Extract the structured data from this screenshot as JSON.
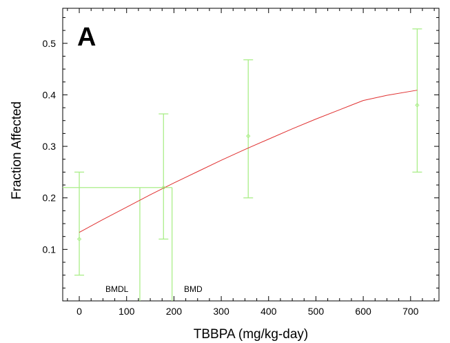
{
  "chart_data": {
    "type": "scatter",
    "panel_label": "A",
    "xlabel": "TBBPA (mg/kg-day)",
    "ylabel": "Fraction Affected",
    "xlim": [
      -35,
      760
    ],
    "ylim": [
      0.0,
      0.568
    ],
    "x_ticks": [
      0,
      100,
      200,
      300,
      400,
      500,
      600,
      700
    ],
    "y_ticks": [
      0.1,
      0.2,
      0.3,
      0.4,
      0.5
    ],
    "y_tick_labels": [
      "0.1",
      "0.2",
      "0.3",
      "0.4",
      "0.5"
    ],
    "grid": false,
    "data_points": [
      {
        "x": 0,
        "y": 0.12,
        "lower": 0.05,
        "upper": 0.25
      },
      {
        "x": 178,
        "y": 0.22,
        "lower": 0.12,
        "upper": 0.363
      },
      {
        "x": 357,
        "y": 0.32,
        "lower": 0.2,
        "upper": 0.468
      },
      {
        "x": 714,
        "y": 0.38,
        "lower": 0.25,
        "upper": 0.528
      }
    ],
    "fit_curve": {
      "x": [
        0,
        50,
        100,
        150,
        200,
        250,
        300,
        350,
        400,
        450,
        500,
        550,
        600,
        650,
        714
      ],
      "y": [
        0.133,
        0.158,
        0.182,
        0.206,
        0.229,
        0.251,
        0.273,
        0.294,
        0.314,
        0.334,
        0.353,
        0.371,
        0.389,
        0.399,
        0.409
      ]
    },
    "benchmark_response": 0.22,
    "bmdl": 128,
    "bmd": 196,
    "annotations": {
      "bmdl_label": "BMDL",
      "bmd_label": "BMD"
    },
    "colors": {
      "data": "#aaee88",
      "fit": "#e03030",
      "axis": "#000000"
    }
  }
}
